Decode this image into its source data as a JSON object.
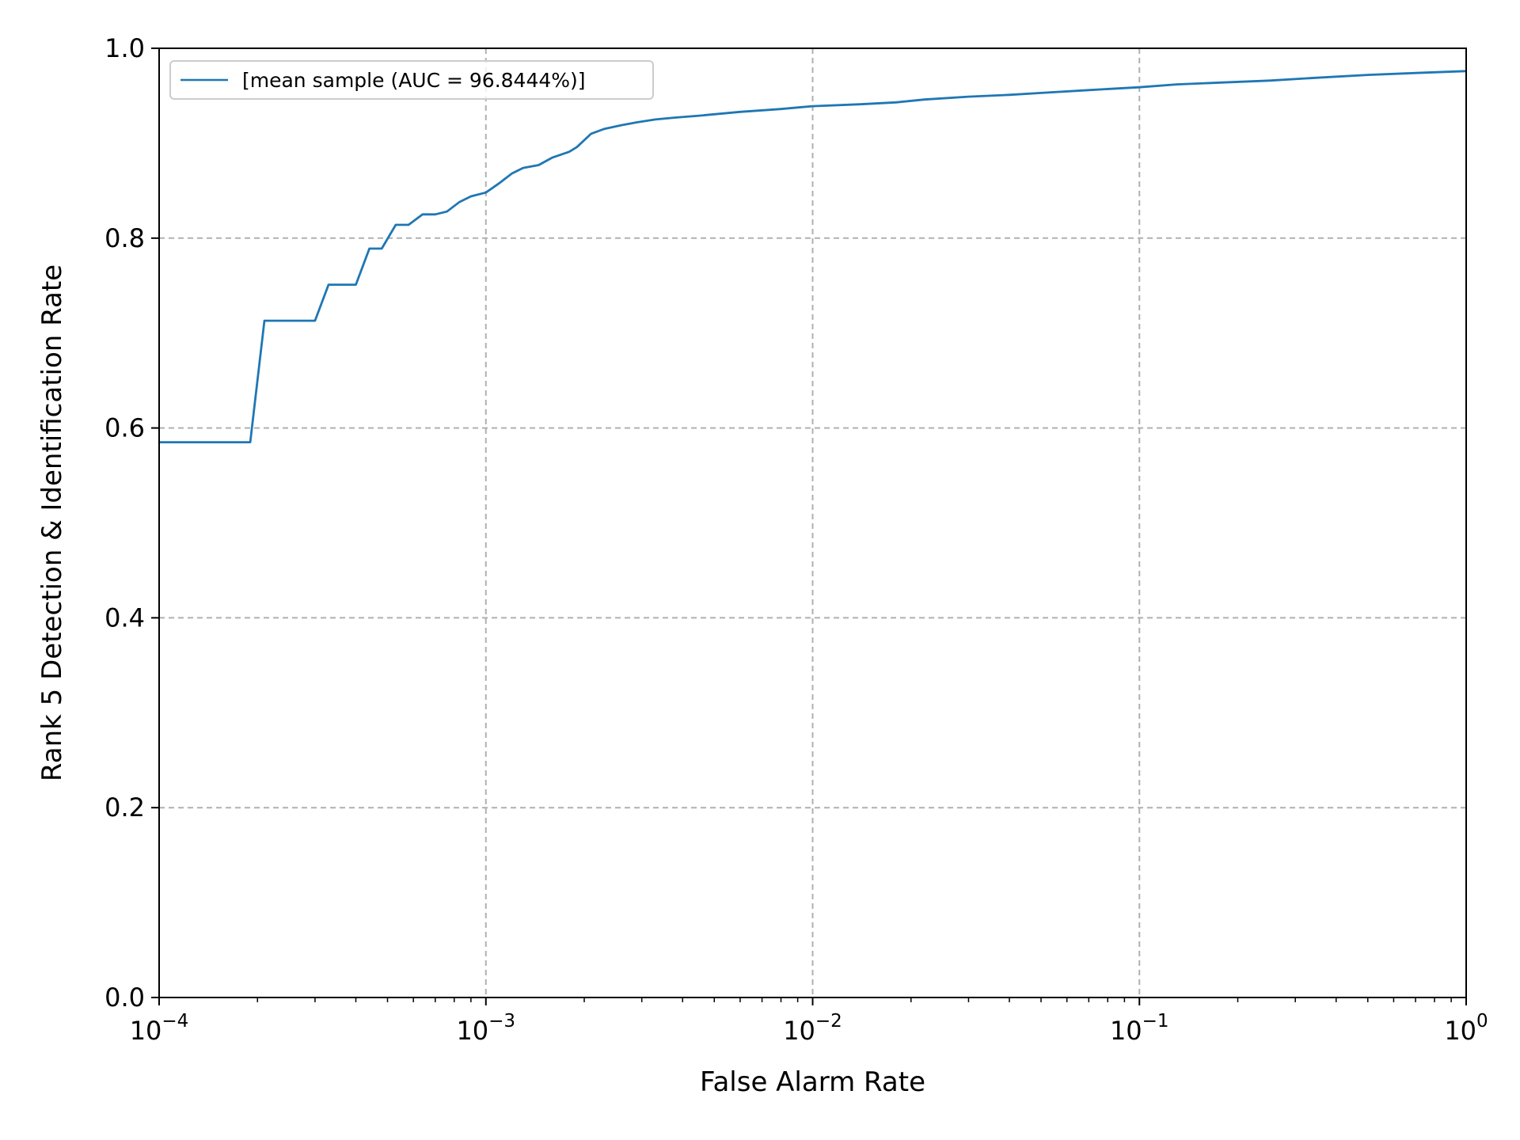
{
  "chart_data": {
    "type": "line",
    "title": "",
    "xlabel": "False Alarm Rate",
    "ylabel": "Rank 5 Detection & Identification Rate",
    "xscale": "log",
    "xlim": [
      0.0001,
      1
    ],
    "ylim": [
      0.0,
      1.0
    ],
    "grid": true,
    "grid_style": "dashed",
    "legend_position": "top-left",
    "x_ticks": [
      {
        "value": 0.0001,
        "base": "10",
        "exp": "−4"
      },
      {
        "value": 0.001,
        "base": "10",
        "exp": "−3"
      },
      {
        "value": 0.01,
        "base": "10",
        "exp": "−2"
      },
      {
        "value": 0.1,
        "base": "10",
        "exp": "−1"
      },
      {
        "value": 1,
        "base": "10",
        "exp": "0"
      }
    ],
    "y_ticks": [
      {
        "value": 0.0,
        "label": "0.0"
      },
      {
        "value": 0.2,
        "label": "0.2"
      },
      {
        "value": 0.4,
        "label": "0.4"
      },
      {
        "value": 0.6,
        "label": "0.6"
      },
      {
        "value": 0.8,
        "label": "0.8"
      },
      {
        "value": 1.0,
        "label": "1.0"
      }
    ],
    "series": [
      {
        "name": "[mean sample (AUC = 96.8444%)]",
        "color": "#1f77b4",
        "x": [
          0.0001,
          0.00019,
          0.00021,
          0.0003,
          0.00033,
          0.0004,
          0.00044,
          0.00048,
          0.00053,
          0.00058,
          0.00064,
          0.0007,
          0.00076,
          0.00083,
          0.0009,
          0.001,
          0.0011,
          0.0012,
          0.0013,
          0.00145,
          0.0016,
          0.0018,
          0.0019,
          0.0021,
          0.0023,
          0.0026,
          0.0029,
          0.0033,
          0.0038,
          0.0045,
          0.006,
          0.008,
          0.01,
          0.014,
          0.018,
          0.022,
          0.03,
          0.04,
          0.05,
          0.07,
          0.1,
          0.13,
          0.18,
          0.25,
          0.35,
          0.5,
          0.7,
          1.0
        ],
        "y": [
          0.585,
          0.585,
          0.713,
          0.713,
          0.751,
          0.751,
          0.789,
          0.789,
          0.814,
          0.814,
          0.825,
          0.825,
          0.828,
          0.838,
          0.844,
          0.848,
          0.858,
          0.868,
          0.874,
          0.877,
          0.885,
          0.891,
          0.896,
          0.91,
          0.915,
          0.919,
          0.922,
          0.925,
          0.927,
          0.929,
          0.933,
          0.936,
          0.939,
          0.941,
          0.943,
          0.946,
          0.949,
          0.951,
          0.953,
          0.956,
          0.959,
          0.962,
          0.964,
          0.966,
          0.969,
          0.972,
          0.974,
          0.976
        ]
      }
    ]
  }
}
